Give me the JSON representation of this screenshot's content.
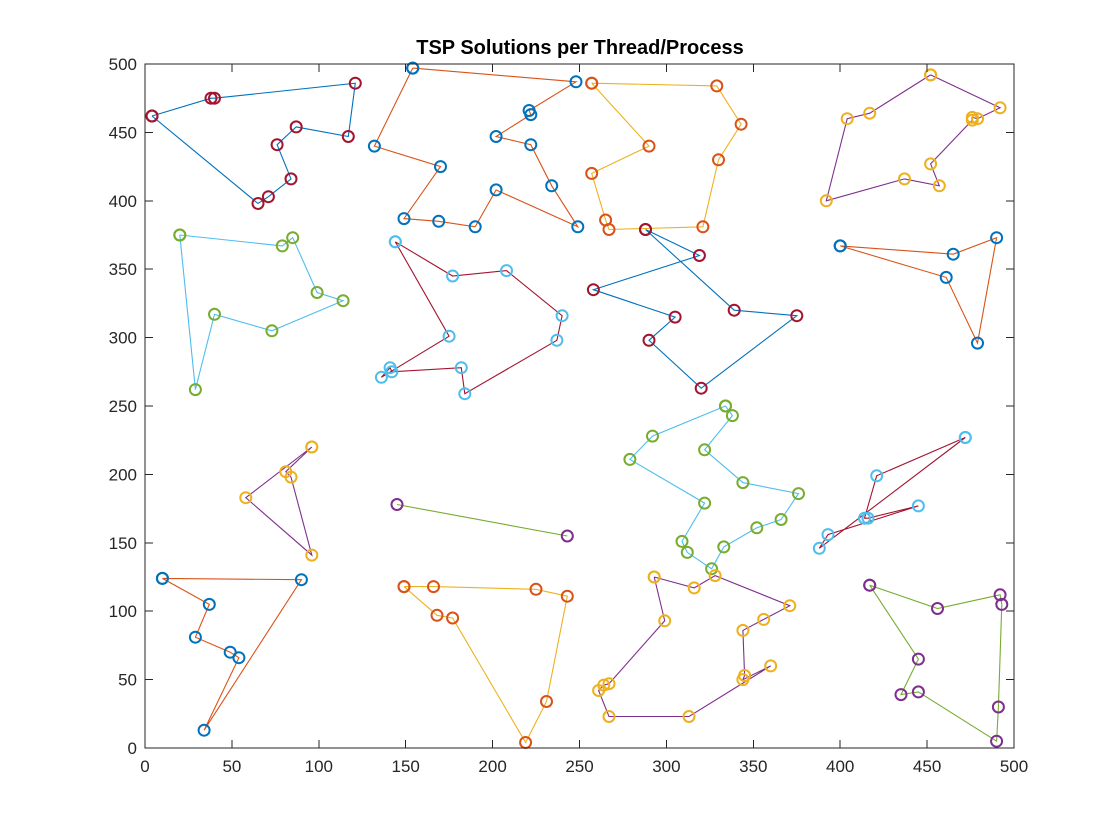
{
  "chart_data": {
    "type": "line",
    "title": "TSP Solutions per Thread/Process",
    "xlabel": "",
    "ylabel": "",
    "xlim": [
      0,
      500
    ],
    "ylim": [
      0,
      500
    ],
    "xticks": [
      0,
      50,
      100,
      150,
      200,
      250,
      300,
      350,
      400,
      450,
      500
    ],
    "yticks": [
      0,
      50,
      100,
      150,
      200,
      250,
      300,
      350,
      400,
      450,
      500
    ],
    "grid": false,
    "legend": "none",
    "tours": [
      {
        "line_color": "#0072BD",
        "marker_color": "#A2142F",
        "points": [
          [
            4,
            462
          ],
          [
            38,
            475
          ],
          [
            40,
            475
          ],
          [
            121,
            486
          ],
          [
            117,
            447
          ],
          [
            87,
            454
          ],
          [
            76,
            441
          ],
          [
            84,
            416
          ],
          [
            71,
            403
          ],
          [
            65,
            398
          ],
          [
            4,
            462
          ]
        ]
      },
      {
        "line_color": "#D95319",
        "marker_color": "#0072BD",
        "points": [
          [
            154,
            497
          ],
          [
            248,
            487
          ],
          [
            221,
            466
          ],
          [
            222,
            463
          ],
          [
            202,
            447
          ],
          [
            222,
            441
          ],
          [
            234,
            411
          ],
          [
            249,
            381
          ],
          [
            202,
            408
          ],
          [
            190,
            381
          ],
          [
            169,
            385
          ],
          [
            149,
            387
          ],
          [
            170,
            425
          ],
          [
            132,
            440
          ],
          [
            154,
            497
          ]
        ]
      },
      {
        "line_color": "#EDB120",
        "marker_color": "#D95319",
        "points": [
          [
            257,
            486
          ],
          [
            329,
            484
          ],
          [
            343,
            456
          ],
          [
            330,
            430
          ],
          [
            321,
            381
          ],
          [
            267,
            379
          ],
          [
            265,
            386
          ],
          [
            257,
            420
          ],
          [
            290,
            440
          ],
          [
            257,
            486
          ]
        ]
      },
      {
        "line_color": "#7E2F8E",
        "marker_color": "#EDB120",
        "points": [
          [
            452,
            492
          ],
          [
            492,
            468
          ],
          [
            479,
            460
          ],
          [
            476,
            461
          ],
          [
            476,
            459
          ],
          [
            452,
            427
          ],
          [
            457,
            411
          ],
          [
            437,
            416
          ],
          [
            392,
            400
          ],
          [
            404,
            460
          ],
          [
            417,
            464
          ],
          [
            452,
            492
          ]
        ]
      },
      {
        "line_color": "#4DBEEE",
        "marker_color": "#77AC30",
        "points": [
          [
            20,
            375
          ],
          [
            79,
            367
          ],
          [
            85,
            373
          ],
          [
            99,
            333
          ],
          [
            114,
            327
          ],
          [
            73,
            305
          ],
          [
            40,
            317
          ],
          [
            29,
            262
          ],
          [
            20,
            375
          ]
        ]
      },
      {
        "line_color": "#A2142F",
        "marker_color": "#4DBEEE",
        "points": [
          [
            144,
            370
          ],
          [
            175,
            301
          ],
          [
            136,
            271
          ],
          [
            141,
            278
          ],
          [
            142,
            275
          ],
          [
            182,
            278
          ],
          [
            184,
            259
          ],
          [
            237,
            298
          ],
          [
            240,
            316
          ],
          [
            208,
            349
          ],
          [
            177,
            345
          ],
          [
            144,
            370
          ]
        ]
      },
      {
        "line_color": "#0072BD",
        "marker_color": "#A2142F",
        "points": [
          [
            288,
            379
          ],
          [
            319,
            360
          ],
          [
            258,
            335
          ],
          [
            305,
            315
          ],
          [
            290,
            298
          ],
          [
            320,
            263
          ],
          [
            375,
            316
          ],
          [
            339,
            320
          ],
          [
            288,
            379
          ]
        ]
      },
      {
        "line_color": "#D95319",
        "marker_color": "#0072BD",
        "points": [
          [
            400,
            367
          ],
          [
            465,
            361
          ],
          [
            490,
            373
          ],
          [
            479,
            296
          ],
          [
            461,
            344
          ],
          [
            400,
            367
          ]
        ]
      },
      {
        "line_color": "#7E2F8E",
        "marker_color": "#EDB120",
        "points": [
          [
            96,
            220
          ],
          [
            58,
            183
          ],
          [
            96,
            141
          ],
          [
            84,
            198
          ],
          [
            81,
            202
          ],
          [
            96,
            220
          ]
        ]
      },
      {
        "line_color": "#77AC30",
        "marker_color": "#7E2F8E",
        "points": [
          [
            145,
            178
          ],
          [
            243,
            155
          ]
        ]
      },
      {
        "line_color": "#4DBEEE",
        "marker_color": "#77AC30",
        "points": [
          [
            334,
            250
          ],
          [
            292,
            228
          ],
          [
            279,
            211
          ],
          [
            322,
            179
          ],
          [
            309,
            151
          ],
          [
            312,
            143
          ],
          [
            326,
            131
          ],
          [
            333,
            147
          ],
          [
            352,
            161
          ],
          [
            366,
            167
          ],
          [
            376,
            186
          ],
          [
            344,
            194
          ],
          [
            322,
            218
          ],
          [
            338,
            243
          ],
          [
            334,
            250
          ]
        ]
      },
      {
        "line_color": "#A2142F",
        "marker_color": "#4DBEEE",
        "points": [
          [
            472,
            227
          ],
          [
            421,
            199
          ],
          [
            414,
            168
          ],
          [
            416,
            168
          ],
          [
            445,
            177
          ],
          [
            393,
            156
          ],
          [
            388,
            146
          ],
          [
            472,
            227
          ]
        ]
      },
      {
        "line_color": "#D95319",
        "marker_color": "#0072BD",
        "points": [
          [
            10,
            124
          ],
          [
            90,
            123
          ],
          [
            34,
            13
          ],
          [
            54,
            66
          ],
          [
            49,
            70
          ],
          [
            29,
            81
          ],
          [
            37,
            105
          ],
          [
            10,
            124
          ]
        ]
      },
      {
        "line_color": "#EDB120",
        "marker_color": "#D95319",
        "points": [
          [
            149,
            118
          ],
          [
            166,
            118
          ],
          [
            225,
            116
          ],
          [
            243,
            111
          ],
          [
            231,
            34
          ],
          [
            219,
            4
          ],
          [
            177,
            95
          ],
          [
            168,
            97
          ],
          [
            149,
            118
          ]
        ]
      },
      {
        "line_color": "#7E2F8E",
        "marker_color": "#EDB120",
        "points": [
          [
            293,
            125
          ],
          [
            299,
            93
          ],
          [
            267,
            47
          ],
          [
            264,
            46
          ],
          [
            261,
            42
          ],
          [
            267,
            23
          ],
          [
            313,
            23
          ],
          [
            360,
            60
          ],
          [
            344,
            50
          ],
          [
            345,
            53
          ],
          [
            344,
            86
          ],
          [
            356,
            94
          ],
          [
            371,
            104
          ],
          [
            328,
            126
          ],
          [
            316,
            117
          ],
          [
            293,
            125
          ]
        ]
      },
      {
        "line_color": "#77AC30",
        "marker_color": "#7E2F8E",
        "points": [
          [
            417,
            119
          ],
          [
            456,
            102
          ],
          [
            492,
            112
          ],
          [
            493,
            105
          ],
          [
            491,
            30
          ],
          [
            490,
            5
          ],
          [
            445,
            41
          ],
          [
            435,
            39
          ],
          [
            445,
            65
          ],
          [
            417,
            119
          ]
        ]
      }
    ]
  }
}
